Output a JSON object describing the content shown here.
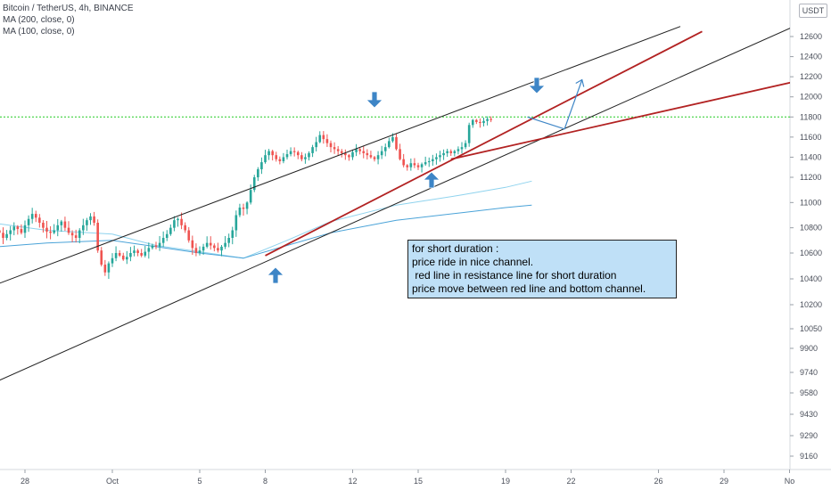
{
  "header": {
    "symbol_line": "Bitcoin / TetherUS, 4h, BINANCE",
    "ma_200_label": "MA (200, close, 0)",
    "ma_100_label": "MA (100, close, 0)"
  },
  "currency_badge": "USDT",
  "annotation": {
    "lines": [
      "for short duration :",
      "price ride in nice channel.",
      " red line in resistance line for short duration",
      "price move between red line and bottom channel."
    ]
  },
  "colors": {
    "bull": "#26a69a",
    "bear": "#ef5350",
    "channel": "#222222",
    "red_line": "#b22222",
    "ma_light": "#8fd3ee",
    "ma_dark": "#4aa3d8",
    "dotted_level": "#22cc22",
    "arrow": "#3d85c6"
  },
  "chart_data": {
    "type": "candlestick",
    "title": "Bitcoin / TetherUS, 4h, BINANCE",
    "y_ticks": [
      12600,
      12400,
      12200,
      12000,
      11800,
      11600,
      11400,
      11200,
      11000,
      10800,
      10600,
      10400,
      10200,
      10050,
      9900,
      9740,
      9580,
      9430,
      9290,
      9160
    ],
    "x_ticks": [
      {
        "label": "28",
        "day": -3
      },
      {
        "label": "Oct",
        "day": 1
      },
      {
        "label": "5",
        "day": 5
      },
      {
        "label": "8",
        "day": 8
      },
      {
        "label": "12",
        "day": 12
      },
      {
        "label": "15",
        "day": 15
      },
      {
        "label": "19",
        "day": 19
      },
      {
        "label": "22",
        "day": 22
      },
      {
        "label": "26",
        "day": 26
      },
      {
        "label": "29",
        "day": 29
      },
      {
        "label": "No",
        "day": 32
      }
    ],
    "dotted_level": 11800,
    "closes": [
      10770,
      10760,
      10790,
      10800,
      10780,
      10760,
      10720,
      10750,
      10780,
      10810,
      10790,
      10760,
      10820,
      10870,
      10910,
      10880,
      10840,
      10800,
      10770,
      10760,
      10780,
      10820,
      10850,
      10800,
      10760,
      10740,
      10720,
      10780,
      10820,
      10860,
      10890,
      10840,
      10620,
      10510,
      10450,
      10520,
      10560,
      10600,
      10580,
      10550,
      10570,
      10600,
      10620,
      10600,
      10580,
      10610,
      10640,
      10660,
      10650,
      10680,
      10720,
      10750,
      10800,
      10860,
      10870,
      10820,
      10780,
      10700,
      10640,
      10600,
      10620,
      10650,
      10680,
      10660,
      10640,
      10620,
      10650,
      10680,
      10720,
      10780,
      10900,
      10960,
      10950,
      11000,
      11100,
      11200,
      11280,
      11350,
      11420,
      11460,
      11420,
      11380,
      11360,
      11400,
      11430,
      11460,
      11450,
      11420,
      11380,
      11400,
      11440,
      11500,
      11550,
      11620,
      11580,
      11540,
      11500,
      11480,
      11460,
      11440,
      11420,
      11400,
      11450,
      11480,
      11460,
      11440,
      11420,
      11400,
      11380,
      11420,
      11460,
      11500,
      11560,
      11600,
      11480,
      11380,
      11320,
      11300,
      11340,
      11320,
      11300,
      11330,
      11350,
      11360,
      11380,
      11400,
      11420,
      11440,
      11460,
      11440,
      11460,
      11480,
      11500,
      11540,
      11720,
      11770,
      11750,
      11740,
      11760,
      11780,
      11770
    ],
    "ma_light": [
      [
        -5.0,
        10850
      ],
      [
        -2,
        10780
      ],
      [
        1.0,
        10750
      ],
      [
        3,
        10660
      ],
      [
        5.0,
        10610
      ],
      [
        7,
        10560
      ],
      [
        9.0,
        10700
      ],
      [
        11,
        10850
      ],
      [
        14.0,
        10980
      ],
      [
        17,
        11060
      ],
      [
        19.0,
        11120
      ],
      [
        20.2,
        11170
      ]
    ],
    "ma_dark": [
      [
        -5.0,
        10640
      ],
      [
        -2,
        10680
      ],
      [
        1.0,
        10700
      ],
      [
        3,
        10650
      ],
      [
        5.0,
        10600
      ],
      [
        7,
        10560
      ],
      [
        9.0,
        10660
      ],
      [
        11,
        10760
      ],
      [
        14.0,
        10860
      ],
      [
        17,
        10920
      ],
      [
        19.0,
        10960
      ],
      [
        20.2,
        10980
      ]
    ],
    "channel_top": [
      [
        -5.2,
        10300
      ],
      [
        27.0,
        12700
      ]
    ],
    "channel_bottom": [
      [
        -5.2,
        9600
      ],
      [
        32.2,
        12700
      ]
    ],
    "red_line_steep": [
      [
        8.0,
        10580
      ],
      [
        28.0,
        12650
      ]
    ],
    "red_line_resistance": [
      [
        16.5,
        11380
      ],
      [
        32.2,
        12150
      ]
    ],
    "projection_path": [
      [
        20.0,
        11800
      ],
      [
        21.7,
        11680
      ],
      [
        22.5,
        12170
      ]
    ]
  }
}
